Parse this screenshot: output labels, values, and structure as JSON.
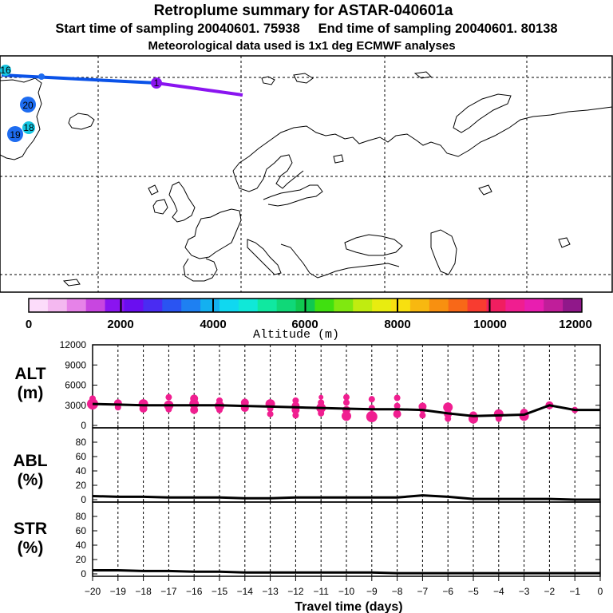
{
  "header": {
    "title": "Retroplume summary for ASTAR-040601a",
    "subtitle": "Start time of sampling 20040601. 75938     End time of sampling 20040601. 80138",
    "met_line": "Meteorological data used is 1x1 deg ECMWF analyses"
  },
  "map": {
    "colors": {
      "blue_track": "#0a52e8",
      "purple_track": "#8a14f0"
    },
    "track_points": [
      {
        "label": "16",
        "color": "#16c6e2"
      },
      {
        "label": "20",
        "color": "#1e6cf0"
      },
      {
        "label": "19",
        "color": "#1e6cf0"
      },
      {
        "label": "18",
        "color": "#16c6e2"
      },
      {
        "label": "1",
        "color": "#8a14f0"
      }
    ]
  },
  "colorbar": {
    "tick_labels": [
      "0",
      "2000",
      "4000",
      "6000",
      "8000",
      "10000",
      "12000"
    ],
    "label": "Altitude (m)",
    "colors": [
      "#fcdcfa",
      "#f4b8f0",
      "#e682e8",
      "#c846e0",
      "#8a14f0",
      "#6a0ef0",
      "#4a2cf2",
      "#2a54f2",
      "#1e80f2",
      "#14b0f0",
      "#10d8f0",
      "#10e8d8",
      "#10e8a0",
      "#10d878",
      "#10c850",
      "#40e010",
      "#80e810",
      "#c0ec10",
      "#e8ec10",
      "#f8e010",
      "#f8b810",
      "#f89010",
      "#f86818",
      "#f83c30",
      "#f01e60",
      "#f01e90",
      "#e81eb0",
      "#c01e9a",
      "#90188a"
    ]
  },
  "chart_data": [
    {
      "type": "scatter",
      "panel": "ALT",
      "ylabel": "ALT\n(m)",
      "ylim": [
        0,
        12000
      ],
      "yticks": [
        0,
        3000,
        6000,
        9000,
        12000
      ],
      "xlim": [
        -20,
        0
      ],
      "line": {
        "x": [
          -20,
          -19,
          -18,
          -17,
          -16,
          -15,
          -14,
          -13,
          -12,
          -11,
          -10,
          -9,
          -8,
          -7,
          -6,
          -5,
          -4,
          -3,
          -2,
          -1,
          0
        ],
        "y": [
          3200,
          3100,
          3000,
          3000,
          3000,
          3000,
          2900,
          2800,
          2700,
          2600,
          2500,
          2400,
          2400,
          2300,
          1800,
          1400,
          1500,
          1600,
          3000,
          2300,
          2300
        ]
      },
      "points": [
        {
          "x": -20,
          "y": 3200,
          "s": 7
        },
        {
          "x": -20,
          "y": 4000,
          "s": 4
        },
        {
          "x": -20,
          "y": 2700,
          "s": 3
        },
        {
          "x": -19,
          "y": 3300,
          "s": 5
        },
        {
          "x": -19,
          "y": 2700,
          "s": 4
        },
        {
          "x": -18,
          "y": 3200,
          "s": 6
        },
        {
          "x": -18,
          "y": 2500,
          "s": 5
        },
        {
          "x": -17,
          "y": 4200,
          "s": 4
        },
        {
          "x": -17,
          "y": 3000,
          "s": 6
        },
        {
          "x": -17,
          "y": 2400,
          "s": 4
        },
        {
          "x": -16,
          "y": 4000,
          "s": 5
        },
        {
          "x": -16,
          "y": 3200,
          "s": 6
        },
        {
          "x": -16,
          "y": 2300,
          "s": 5
        },
        {
          "x": -15,
          "y": 3700,
          "s": 4
        },
        {
          "x": -15,
          "y": 2900,
          "s": 6
        },
        {
          "x": -15,
          "y": 2300,
          "s": 4
        },
        {
          "x": -14,
          "y": 3400,
          "s": 5
        },
        {
          "x": -14,
          "y": 2600,
          "s": 5
        },
        {
          "x": -13,
          "y": 3200,
          "s": 6
        },
        {
          "x": -13,
          "y": 2500,
          "s": 4
        },
        {
          "x": -13,
          "y": 1700,
          "s": 4
        },
        {
          "x": -12,
          "y": 3700,
          "s": 4
        },
        {
          "x": -12,
          "y": 2900,
          "s": 5
        },
        {
          "x": -12,
          "y": 2300,
          "s": 5
        },
        {
          "x": -12,
          "y": 1500,
          "s": 4
        },
        {
          "x": -11,
          "y": 4200,
          "s": 3
        },
        {
          "x": -11,
          "y": 3400,
          "s": 4
        },
        {
          "x": -11,
          "y": 2600,
          "s": 6
        },
        {
          "x": -11,
          "y": 1800,
          "s": 4
        },
        {
          "x": -10,
          "y": 4200,
          "s": 4
        },
        {
          "x": -10,
          "y": 3400,
          "s": 4
        },
        {
          "x": -10,
          "y": 2300,
          "s": 5
        },
        {
          "x": -10,
          "y": 1400,
          "s": 6
        },
        {
          "x": -9,
          "y": 3900,
          "s": 4
        },
        {
          "x": -9,
          "y": 2600,
          "s": 4
        },
        {
          "x": -9,
          "y": 1300,
          "s": 7
        },
        {
          "x": -8,
          "y": 4100,
          "s": 4
        },
        {
          "x": -8,
          "y": 2900,
          "s": 4
        },
        {
          "x": -8,
          "y": 1700,
          "s": 5
        },
        {
          "x": -7,
          "y": 2800,
          "s": 5
        },
        {
          "x": -7,
          "y": 2300,
          "s": 4
        },
        {
          "x": -7,
          "y": 1500,
          "s": 4
        },
        {
          "x": -6,
          "y": 2700,
          "s": 6
        },
        {
          "x": -6,
          "y": 1700,
          "s": 5
        },
        {
          "x": -6,
          "y": 1000,
          "s": 4
        },
        {
          "x": -5,
          "y": 1500,
          "s": 5
        },
        {
          "x": -5,
          "y": 1000,
          "s": 6
        },
        {
          "x": -4,
          "y": 1700,
          "s": 6
        },
        {
          "x": -4,
          "y": 1000,
          "s": 4
        },
        {
          "x": -3,
          "y": 1900,
          "s": 5
        },
        {
          "x": -3,
          "y": 1400,
          "s": 6
        },
        {
          "x": -2,
          "y": 3000,
          "s": 5
        },
        {
          "x": -1,
          "y": 2300,
          "s": 4
        }
      ]
    },
    {
      "type": "line",
      "panel": "ABL",
      "ylabel": "ABL\n(%)",
      "ylim": [
        0,
        100
      ],
      "yticks": [
        0,
        20,
        40,
        60,
        80
      ],
      "xlim": [
        -20,
        0
      ],
      "x": [
        -20,
        -19,
        -18,
        -17,
        -16,
        -15,
        -14,
        -13,
        -12,
        -11,
        -10,
        -9,
        -8,
        -7,
        -6,
        -5,
        -4,
        -3,
        -2,
        -1,
        0
      ],
      "y": [
        5,
        4,
        4,
        3,
        3,
        3,
        2,
        2,
        3,
        3,
        3,
        3,
        3,
        6,
        4,
        1,
        1,
        1,
        1,
        0,
        0
      ]
    },
    {
      "type": "line",
      "panel": "STR",
      "ylabel": "STR\n(%)",
      "ylim": [
        0,
        100
      ],
      "yticks": [
        0,
        20,
        40,
        60,
        80
      ],
      "xlim": [
        -20,
        0
      ],
      "xticks": [
        -20,
        -19,
        -18,
        -17,
        -16,
        -15,
        -14,
        -13,
        -12,
        -11,
        -10,
        -9,
        -8,
        -7,
        -6,
        -5,
        -4,
        -3,
        -2,
        -1,
        0
      ],
      "xlabel": "Travel time (days)",
      "x": [
        -20,
        -19,
        -18,
        -17,
        -16,
        -15,
        -14,
        -13,
        -12,
        -11,
        -10,
        -9,
        -8,
        -7,
        -6,
        -5,
        -4,
        -3,
        -2,
        -1,
        0
      ],
      "y": [
        5,
        5,
        4,
        4,
        3,
        3,
        2,
        2,
        2,
        2,
        2,
        2,
        1,
        1,
        1,
        1,
        1,
        1,
        1,
        1,
        1
      ]
    }
  ]
}
